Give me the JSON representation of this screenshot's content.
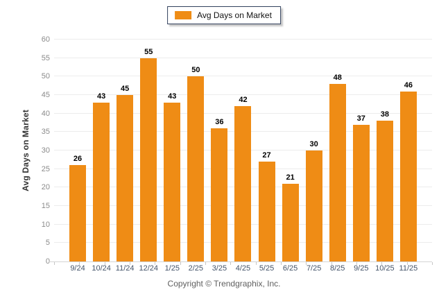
{
  "legend": {
    "label": "Avg Days on Market",
    "swatch_color": "#EF8C15"
  },
  "y_axis": {
    "title": "Avg Days on Market"
  },
  "footer": {
    "copyright": "Copyright © Trendgraphix, Inc."
  },
  "colors": {
    "bar": "#EF8C15",
    "gridline": "#ececec",
    "axis_line": "#d4d4d4",
    "y_tick_text": "#8a8a8a",
    "x_tick_text": "#44546a",
    "data_label_text": "#000000",
    "footer_text": "#5f5f5f"
  },
  "chart_data": {
    "type": "bar",
    "title": "",
    "categories": [
      "9/24",
      "10/24",
      "11/24",
      "12/24",
      "1/25",
      "2/25",
      "3/25",
      "4/25",
      "5/25",
      "6/25",
      "7/25",
      "8/25",
      "9/25",
      "10/25",
      "11/25"
    ],
    "values": [
      26,
      43,
      45,
      55,
      43,
      50,
      36,
      42,
      27,
      21,
      30,
      48,
      37,
      38,
      46
    ],
    "series_name": "Avg Days on Market",
    "xlabel": "",
    "ylabel": "Avg Days on Market",
    "ylim": [
      0,
      60
    ],
    "ytick_step": 5,
    "grid": true,
    "data_labels": true,
    "legend_position": "top-center",
    "bar_color": "#EF8C15"
  }
}
